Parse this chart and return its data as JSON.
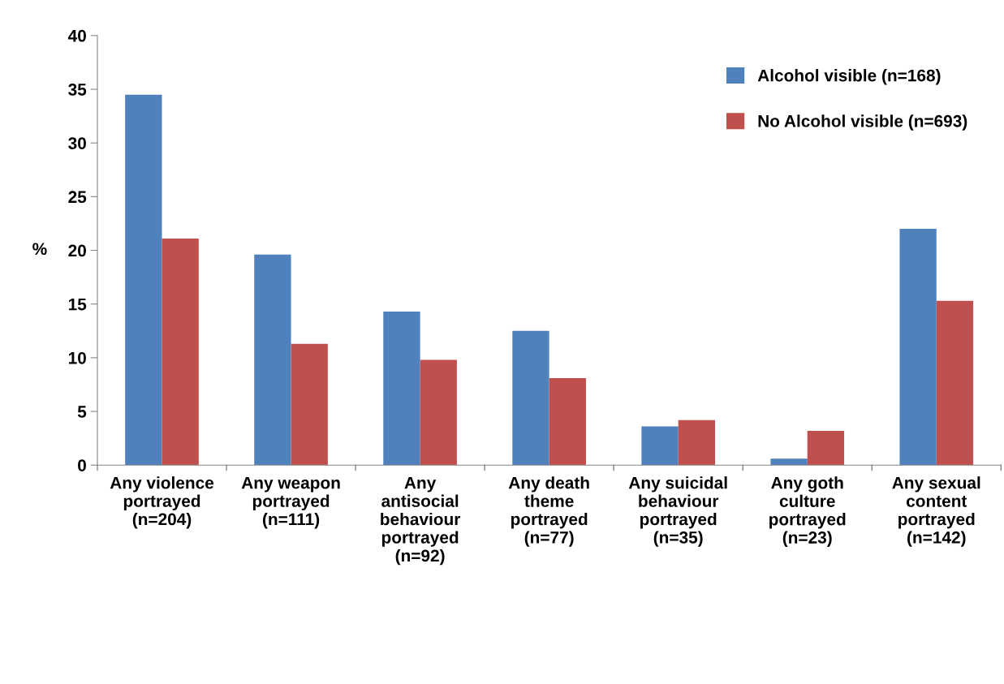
{
  "chart_data": {
    "type": "bar",
    "ylabel": "%",
    "categories": [
      "Any violence\nportrayed\n(n=204)",
      "Any weapon\nportrayed\n(n=111)",
      "Any\nantisocial\nbehaviour\nportrayed\n(n=92)",
      "Any death\ntheme\nportrayed\n(n=77)",
      "Any suicidal\nbehaviour\nportrayed\n(n=35)",
      "Any goth\nculture\nportrayed\n(n=23)",
      "Any sexual\ncontent\nportrayed\n(n=142)"
    ],
    "series": [
      {
        "name": "Alcohol visible (n=168)",
        "color": "#4f81bd",
        "values": [
          34.5,
          19.6,
          14.3,
          12.5,
          3.6,
          0.6,
          22.0
        ]
      },
      {
        "name": "No Alcohol visible (n=693)",
        "color": "#c0504d",
        "values": [
          21.1,
          11.3,
          9.8,
          8.1,
          4.2,
          3.2,
          15.3
        ]
      }
    ],
    "ylim": [
      0,
      40
    ],
    "yticks": [
      0,
      5,
      10,
      15,
      20,
      25,
      30,
      35,
      40
    ],
    "grid": false,
    "legend": "top right"
  }
}
